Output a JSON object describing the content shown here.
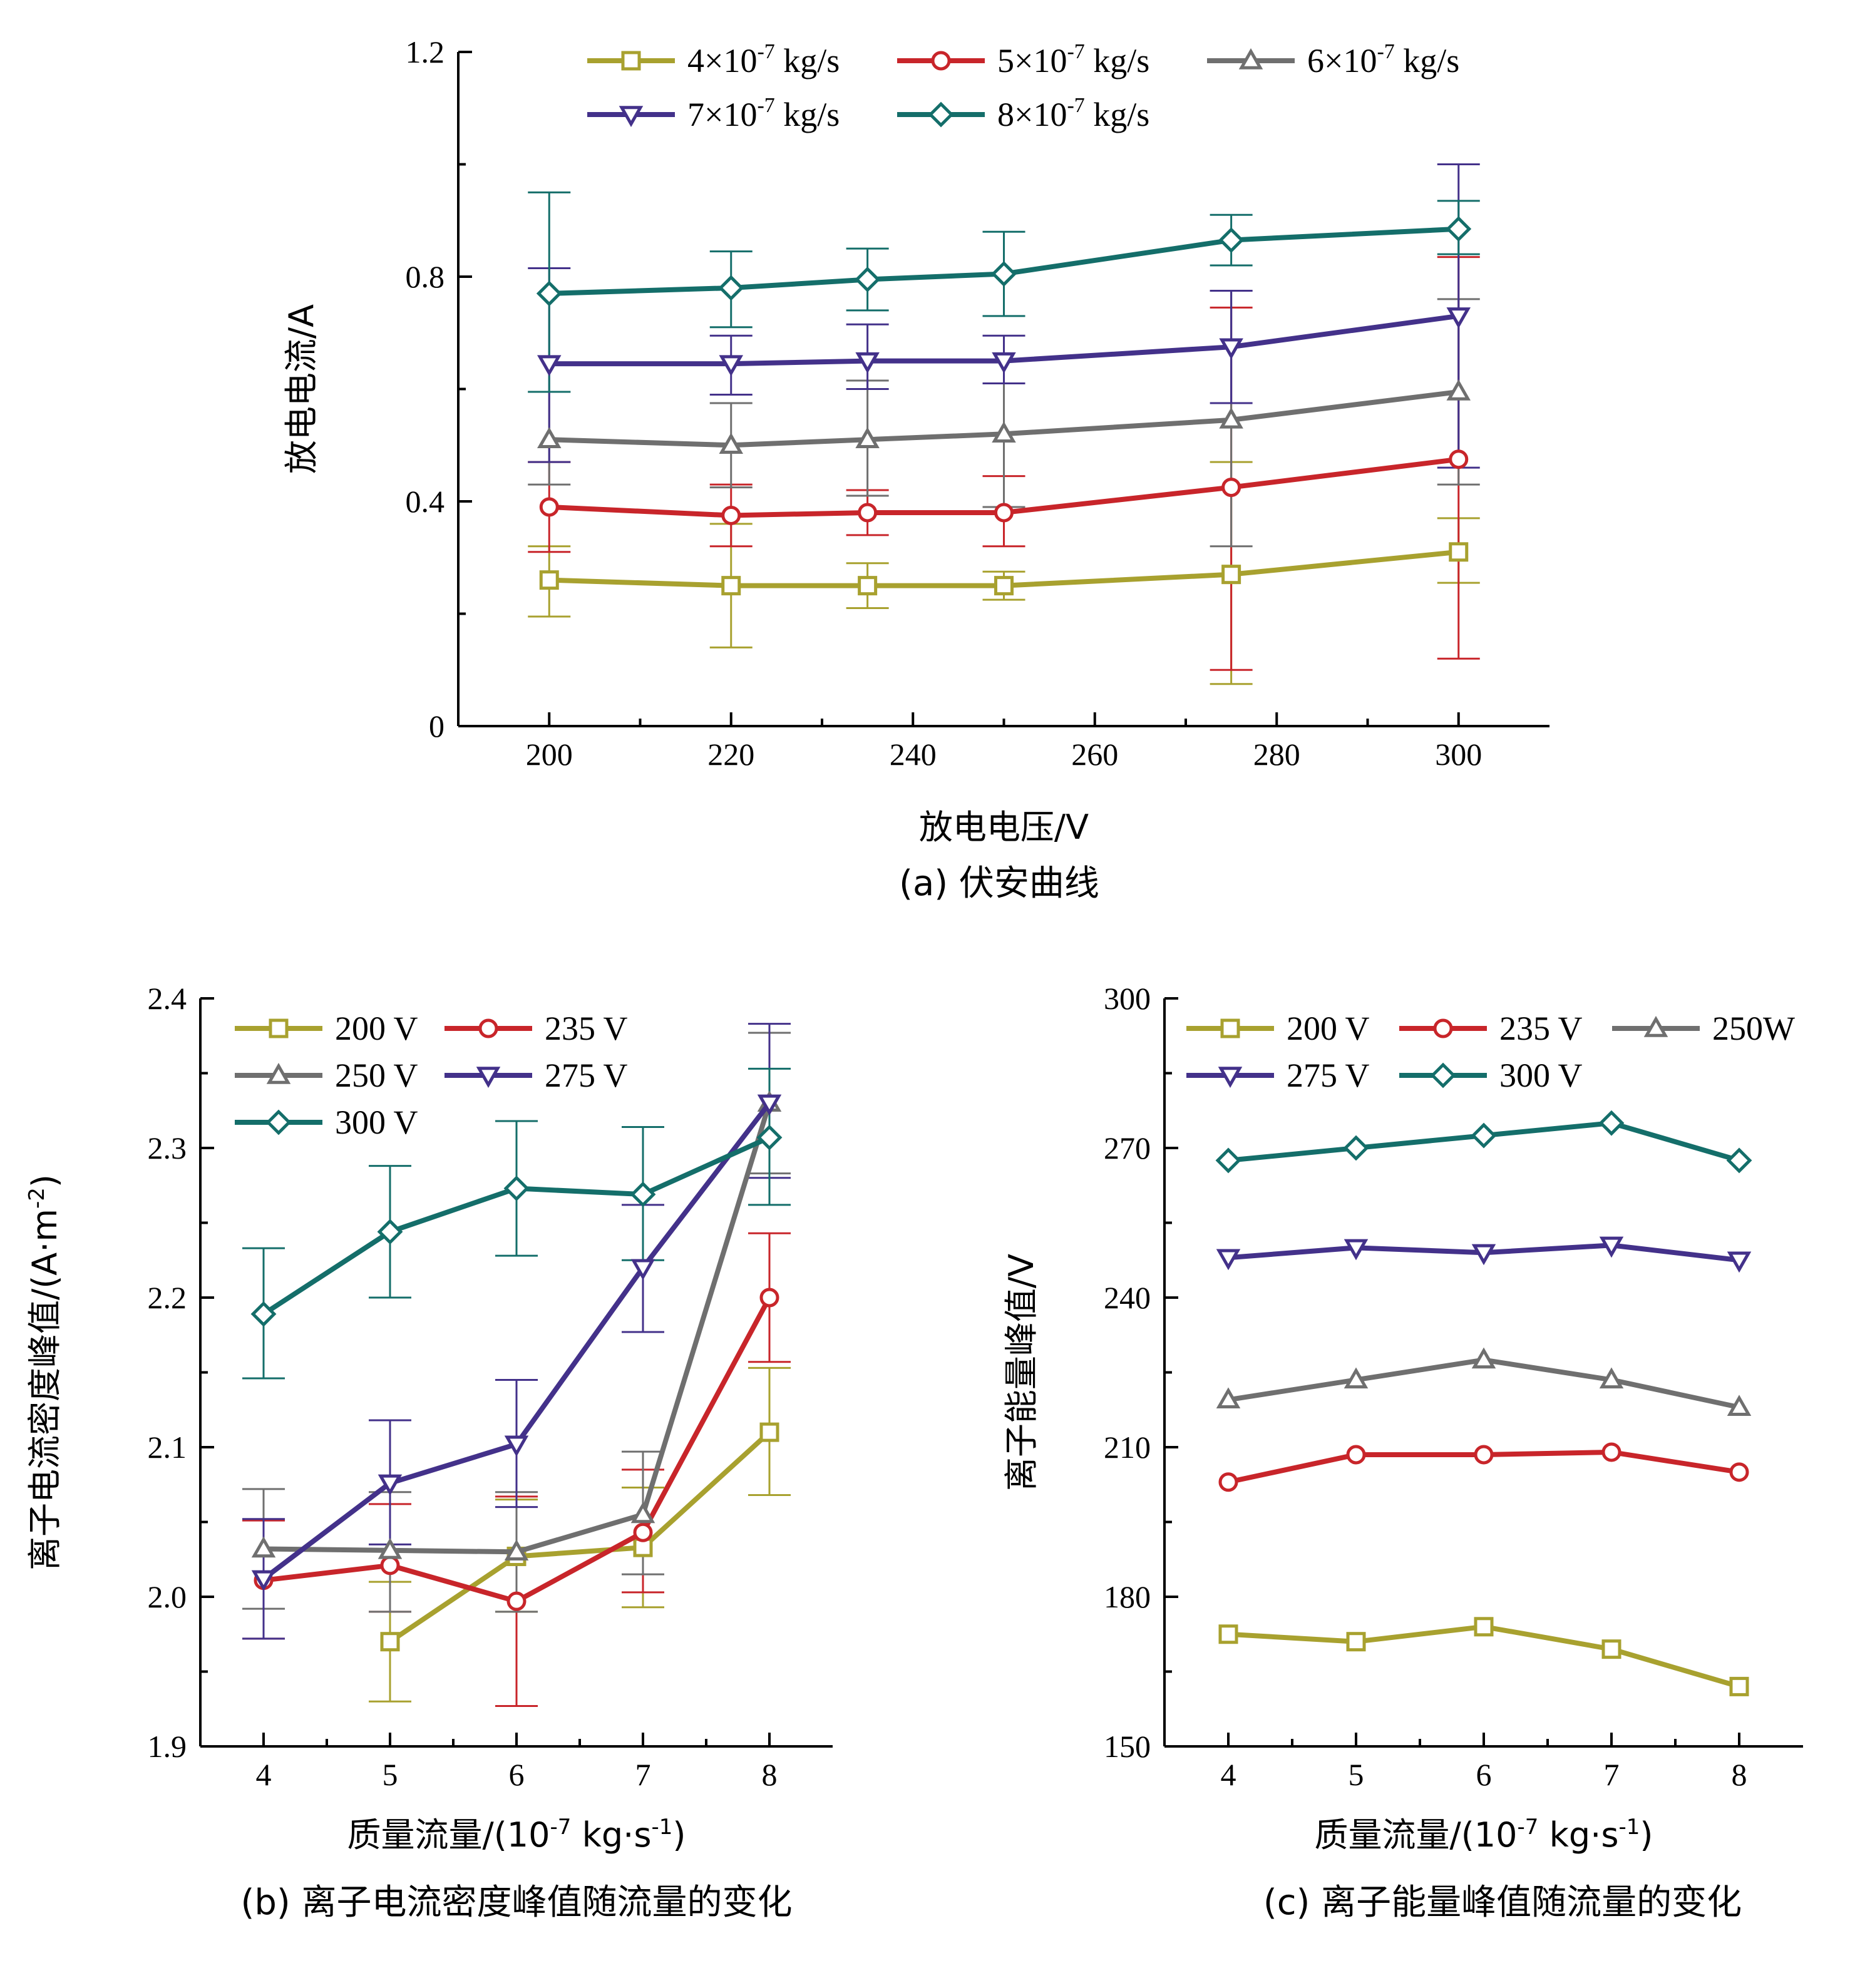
{
  "colors": {
    "olive": "#a8a12f",
    "red": "#c8252a",
    "gray": "#6f6f6f",
    "purple": "#43318a",
    "teal": "#146e6a"
  },
  "chart_data": [
    {
      "id": "a",
      "type": "line",
      "caption": "(a) 伏安曲线",
      "xlabel": "放电电压/V",
      "ylabel": "放电电流/A",
      "xlim": [
        190,
        310
      ],
      "ylim": [
        0,
        1.2
      ],
      "xticks": [
        200,
        220,
        240,
        260,
        280,
        300
      ],
      "xtick_labels": [
        "200",
        "220",
        "240",
        "260",
        "280",
        "300"
      ],
      "yticks": [
        0,
        0.4,
        0.8,
        1.2
      ],
      "ytick_labels": [
        "0",
        "0.4",
        "0.8",
        "1.2"
      ],
      "legend_position": "top",
      "x": [
        200,
        220,
        235,
        250,
        275,
        300
      ],
      "series": [
        {
          "name": "4×10",
          "sup": "-7",
          "unit": " kg/s",
          "marker": "square",
          "color": "olive",
          "values": [
            0.26,
            0.25,
            0.25,
            0.25,
            0.27,
            0.31
          ],
          "err_low": [
            0.195,
            0.14,
            0.21,
            0.225,
            0.075,
            0.255
          ],
          "err_high": [
            0.32,
            0.36,
            0.29,
            0.275,
            0.47,
            0.37
          ]
        },
        {
          "name": "5×10",
          "sup": "-7",
          "unit": " kg/s",
          "marker": "circle",
          "color": "red",
          "values": [
            0.39,
            0.375,
            0.38,
            0.38,
            0.425,
            0.475
          ],
          "err_low": [
            0.31,
            0.32,
            0.34,
            0.32,
            0.1,
            0.12
          ],
          "err_high": [
            0.47,
            0.43,
            0.42,
            0.445,
            0.745,
            0.835
          ]
        },
        {
          "name": "6×10",
          "sup": "-7",
          "unit": " kg/s",
          "marker": "triangle-up",
          "color": "gray",
          "values": [
            0.51,
            0.5,
            0.51,
            0.52,
            0.545,
            0.595
          ],
          "err_low": [
            0.43,
            0.425,
            0.41,
            0.39,
            0.32,
            0.43
          ],
          "err_high": [
            0.595,
            0.575,
            0.615,
            0.61,
            0.775,
            0.76
          ]
        },
        {
          "name": "7×10",
          "sup": "-7",
          "unit": " kg/s",
          "marker": "triangle-down",
          "color": "purple",
          "values": [
            0.645,
            0.645,
            0.65,
            0.65,
            0.675,
            0.73
          ],
          "err_low": [
            0.47,
            0.59,
            0.6,
            0.61,
            0.575,
            0.46
          ],
          "err_high": [
            0.815,
            0.695,
            0.715,
            0.695,
            0.775,
            1.0
          ]
        },
        {
          "name": "8×10",
          "sup": "-7",
          "unit": " kg/s",
          "marker": "diamond",
          "color": "teal",
          "values": [
            0.77,
            0.78,
            0.795,
            0.805,
            0.865,
            0.885
          ],
          "err_low": [
            0.595,
            0.71,
            0.74,
            0.73,
            0.82,
            0.84
          ],
          "err_high": [
            0.95,
            0.845,
            0.85,
            0.88,
            0.91,
            0.935
          ]
        }
      ]
    },
    {
      "id": "b",
      "type": "line",
      "caption": "(b) 离子电流密度峰值随流量的变化",
      "xlabel": "质量流量/(10",
      "xlabel_sup1": "-7",
      "xlabel_mid": " kg·s",
      "xlabel_sup2": "-1",
      "xlabel_end": ")",
      "ylabel": "离子电流密度峰值/(A·m",
      "ylabel_sup": "-2",
      "ylabel_end": ")",
      "xlim": [
        3.5,
        8.5
      ],
      "ylim": [
        1.9,
        2.4
      ],
      "xticks": [
        4,
        5,
        6,
        7,
        8
      ],
      "xtick_labels": [
        "4",
        "5",
        "6",
        "7",
        "8"
      ],
      "yticks": [
        1.9,
        2.0,
        2.1,
        2.2,
        2.3,
        2.4
      ],
      "ytick_labels": [
        "1.9",
        "2.0",
        "2.1",
        "2.2",
        "2.3",
        "2.4"
      ],
      "legend_position": "top-left",
      "series": [
        {
          "name": "200 V",
          "marker": "square",
          "color": "olive",
          "x": [
            5,
            6,
            7,
            8
          ],
          "values": [
            1.97,
            2.027,
            2.033,
            2.11
          ],
          "err_low": [
            1.93,
            1.99,
            1.993,
            2.068
          ],
          "err_high": [
            2.01,
            2.065,
            2.073,
            2.153
          ]
        },
        {
          "name": "235 V",
          "marker": "circle",
          "color": "red",
          "x": [
            4,
            5,
            6,
            7,
            8
          ],
          "values": [
            2.011,
            2.021,
            1.997,
            2.043,
            2.2
          ],
          "err_low": [
            1.972,
            1.99,
            1.927,
            2.003,
            2.157
          ],
          "err_high": [
            2.051,
            2.062,
            2.067,
            2.085,
            2.243
          ]
        },
        {
          "name": "250 V",
          "marker": "triangle-up",
          "color": "gray",
          "x": [
            4,
            5,
            6,
            7,
            8
          ],
          "values": [
            2.032,
            2.031,
            2.03,
            2.055,
            2.33
          ],
          "err_low": [
            1.992,
            1.99,
            1.99,
            2.015,
            2.283
          ],
          "err_high": [
            2.072,
            2.07,
            2.07,
            2.097,
            2.377
          ]
        },
        {
          "name": "275 V",
          "marker": "triangle-down",
          "color": "purple",
          "x": [
            4,
            5,
            6,
            7,
            8
          ],
          "values": [
            2.012,
            2.076,
            2.102,
            2.22,
            2.33
          ],
          "err_low": [
            1.972,
            2.035,
            2.06,
            2.177,
            2.28
          ],
          "err_high": [
            2.052,
            2.118,
            2.145,
            2.262,
            2.383
          ]
        },
        {
          "name": "300 V",
          "marker": "diamond",
          "color": "teal",
          "x": [
            4,
            5,
            6,
            7,
            8
          ],
          "values": [
            2.189,
            2.244,
            2.273,
            2.269,
            2.307
          ],
          "err_low": [
            2.146,
            2.2,
            2.228,
            2.225,
            2.262
          ],
          "err_high": [
            2.233,
            2.288,
            2.318,
            2.314,
            2.353
          ]
        }
      ]
    },
    {
      "id": "c",
      "type": "line",
      "caption": "(c) 离子能量峰值随流量的变化",
      "xlabel": "质量流量/(10",
      "xlabel_sup1": "-7",
      "xlabel_mid": " kg·s",
      "xlabel_sup2": "-1",
      "xlabel_end": ")",
      "ylabel": "离子能量峰值/V",
      "xlim": [
        3.5,
        8.5
      ],
      "ylim": [
        150,
        300
      ],
      "xticks": [
        4,
        5,
        6,
        7,
        8
      ],
      "xtick_labels": [
        "4",
        "5",
        "6",
        "7",
        "8"
      ],
      "yticks": [
        150,
        180,
        210,
        240,
        270,
        300
      ],
      "ytick_labels": [
        "150",
        "180",
        "210",
        "240",
        "270",
        "300"
      ],
      "legend_position": "top",
      "x": [
        4,
        5,
        6,
        7,
        8
      ],
      "series": [
        {
          "name": "200 V",
          "marker": "square",
          "color": "olive",
          "values": [
            172.5,
            171,
            174,
            169.5,
            162
          ]
        },
        {
          "name": "235 V",
          "marker": "circle",
          "color": "red",
          "values": [
            203,
            208.5,
            208.5,
            209,
            205
          ]
        },
        {
          "name": "250W",
          "marker": "triangle-up",
          "color": "gray",
          "values": [
            219.5,
            223.5,
            227.5,
            223.5,
            218
          ]
        },
        {
          "name": "275 V",
          "marker": "triangle-down",
          "color": "purple",
          "values": [
            248,
            250,
            249,
            250.5,
            247.5
          ]
        },
        {
          "name": "300 V",
          "marker": "diamond",
          "color": "teal",
          "values": [
            267.5,
            270,
            272.5,
            275,
            267.5
          ]
        }
      ]
    }
  ]
}
